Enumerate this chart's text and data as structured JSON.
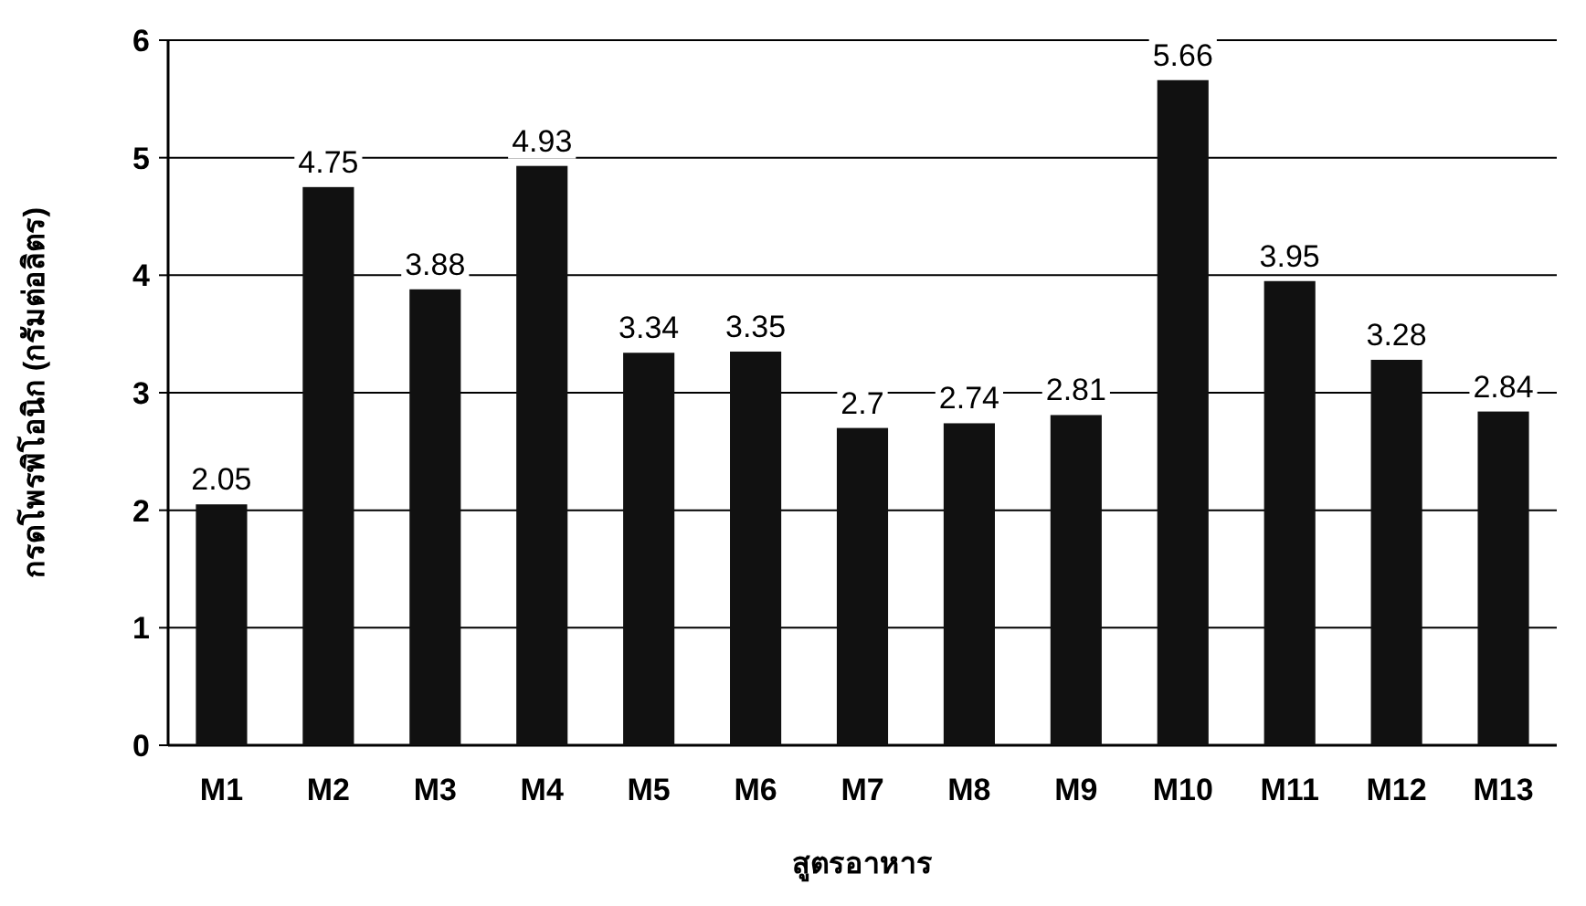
{
  "chart_data": {
    "type": "bar",
    "xlabel": "สูตรอาหาร",
    "ylabel": "กรดโพรพิโอนิก (กรัมต่อลิตร)",
    "categories": [
      "M1",
      "M2",
      "M3",
      "M4",
      "M5",
      "M6",
      "M7",
      "M8",
      "M9",
      "M10",
      "M11",
      "M12",
      "M13"
    ],
    "values": [
      2.05,
      4.75,
      3.88,
      4.93,
      3.34,
      3.35,
      2.7,
      2.74,
      2.81,
      5.66,
      3.95,
      3.28,
      2.84
    ],
    "color": "#111111",
    "ylim": [
      0,
      6
    ],
    "yticks": [
      0,
      1,
      2,
      3,
      4,
      5,
      6
    ],
    "grid": "y",
    "data_labels": true
  }
}
